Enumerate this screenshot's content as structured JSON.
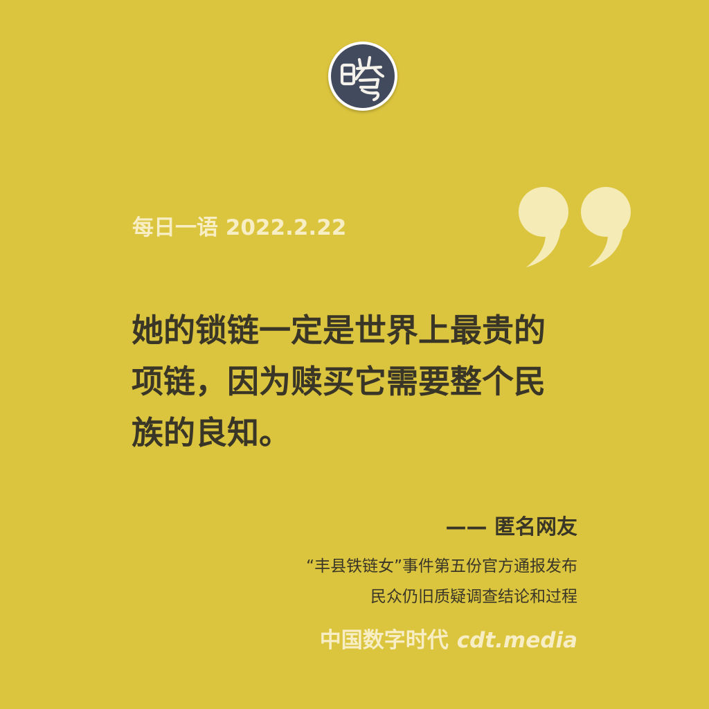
{
  "colors": {
    "background": "#dcc53e",
    "cream": "#f7eec6",
    "dark_text": "#3a3627",
    "logo_navy": "#424a5e"
  },
  "logo": {
    "glyph": "曙"
  },
  "header": {
    "label": "每日一语 2022.2.22"
  },
  "quote": {
    "lines": [
      "她的锁链一定是世界上最贵的",
      "项链，因为赎买它需要整个民",
      "族的良知。"
    ]
  },
  "attribution": "—— 匿名网友",
  "context": {
    "lines": [
      "“丰县铁链女”事件第五份官方通报发布",
      "民众仍旧质疑调查结论和过程"
    ]
  },
  "footer": {
    "name": "中国数字时代",
    "domain": "cdt.media"
  }
}
